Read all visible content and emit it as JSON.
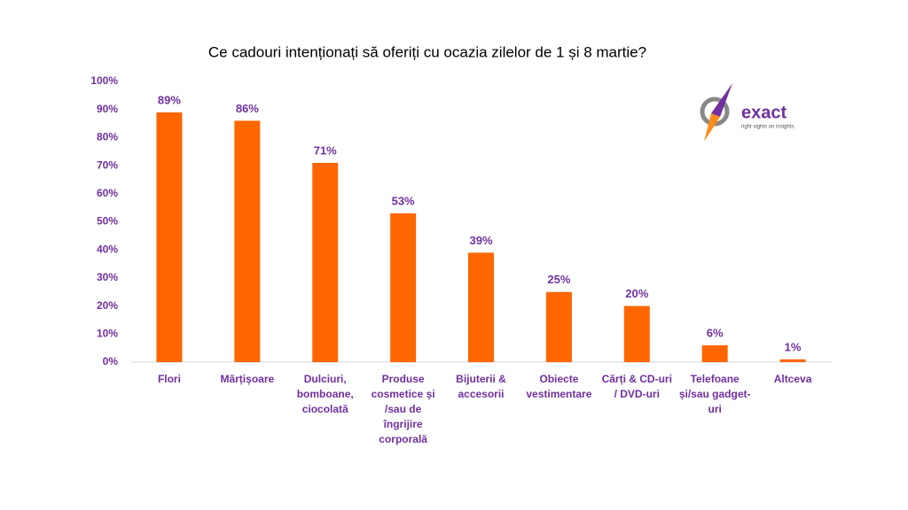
{
  "chart_data": {
    "type": "bar",
    "title": "Ce cadouri intenționați să oferiți cu ocazia zilelor de 1 și 8 martie?",
    "categories": [
      "Flori",
      "Mărțișoare",
      "Dulciuri, bomboane, ciocolată",
      "Produse cosmetice și /sau de îngrijire corporală",
      "Bijuterii & accesorii",
      "Obiecte vestimentare",
      "Cărți & CD-uri / DVD-uri",
      "Telefoane și/sau gadget-uri",
      "Altceva"
    ],
    "values": [
      89,
      86,
      71,
      53,
      39,
      25,
      20,
      6,
      1
    ],
    "value_labels": [
      "89%",
      "86%",
      "71%",
      "53%",
      "39%",
      "25%",
      "20%",
      "6%",
      "1%"
    ],
    "color": "#ff6600",
    "ylim": [
      0,
      100
    ],
    "yticks": [
      {
        "value": 0,
        "label": "0%"
      },
      {
        "value": 10,
        "label": "10%"
      },
      {
        "value": 20,
        "label": "20%"
      },
      {
        "value": 30,
        "label": "30%"
      },
      {
        "value": 40,
        "label": "40%"
      },
      {
        "value": 50,
        "label": "50%"
      },
      {
        "value": 60,
        "label": "60%"
      },
      {
        "value": 70,
        "label": "70%"
      },
      {
        "value": 80,
        "label": "80%"
      },
      {
        "value": 90,
        "label": "90%"
      },
      {
        "value": 100,
        "label": "100%"
      }
    ],
    "grid": false
  },
  "logo": {
    "name": "exact",
    "tagline": "right sights on insights."
  }
}
